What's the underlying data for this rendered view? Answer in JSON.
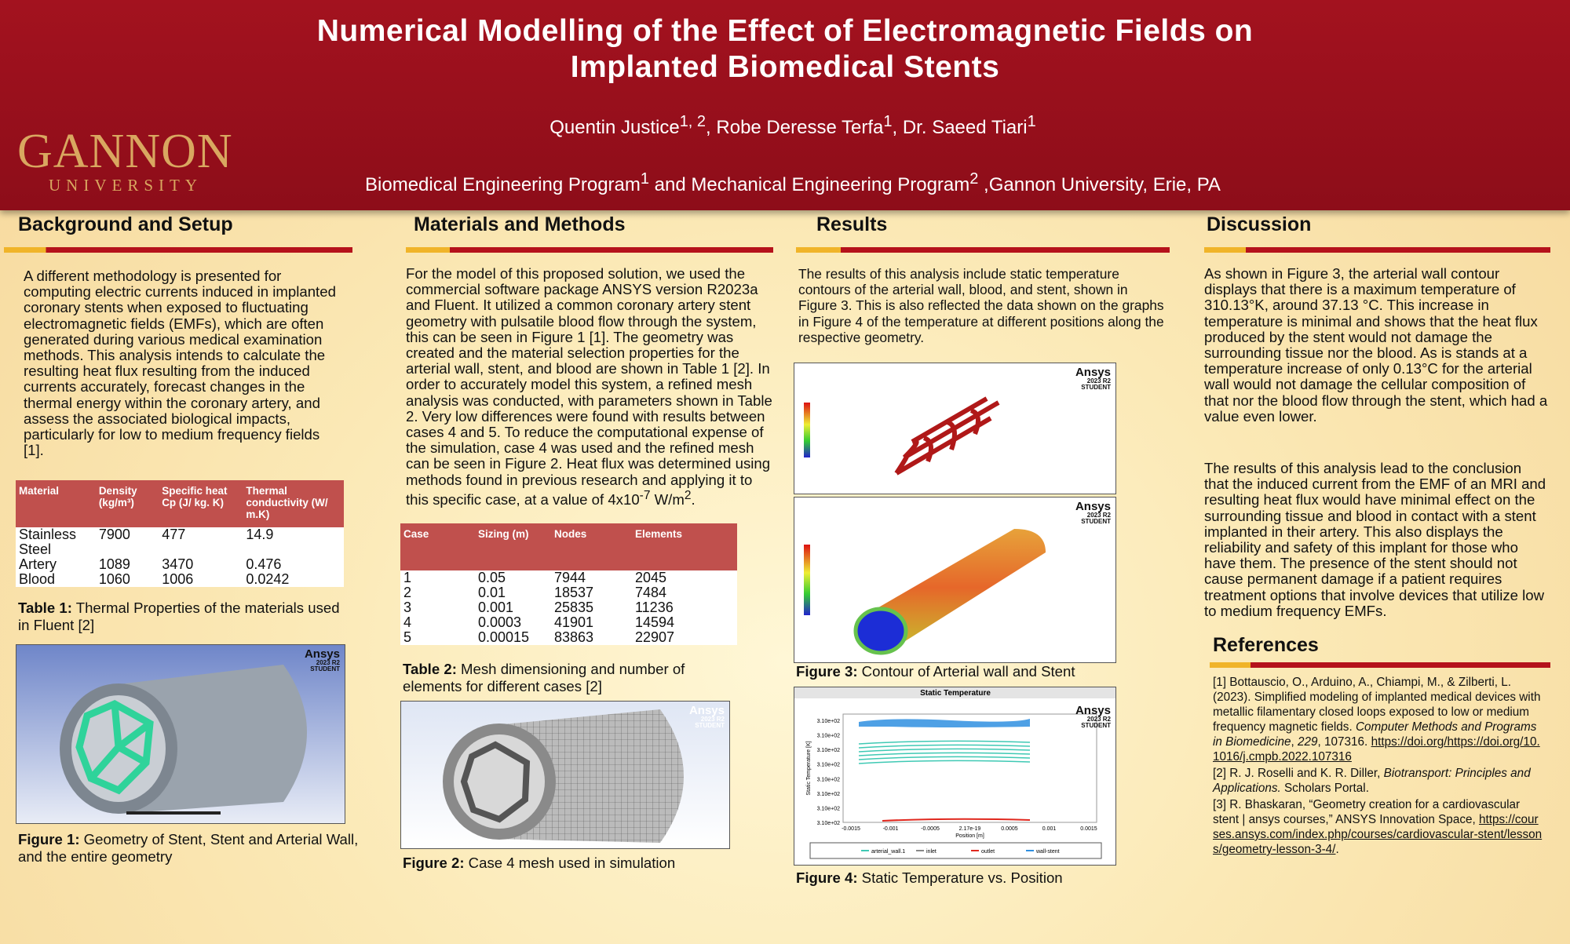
{
  "header": {
    "title_lines": [
      "Numerical Modelling of the Effect of Electromagnetic Fields on",
      "Implanted Biomedical Stents"
    ],
    "authors": [
      {
        "text": "Quentin Justice",
        "sup": "1, 2"
      },
      {
        "text": ", Robe Deresse Terfa",
        "sup": "1"
      },
      {
        "text": ", Dr. Saeed Tiari",
        "sup": "1"
      }
    ],
    "affiliation": [
      {
        "text": "Biomedical Engineering Program",
        "sup": "1"
      },
      {
        "text": " and Mechanical Engineering Program",
        "sup": "2"
      },
      {
        "text": " ,Gannon University, Erie, PA"
      }
    ],
    "logo": {
      "name": "GANNON",
      "sub": "UNIVERSITY"
    }
  },
  "ansys_badge": {
    "brand": "Ansys",
    "version": "2023 R2",
    "edition": "STUDENT"
  },
  "background": {
    "heading": "Background and Setup",
    "text": "A different methodology is presented for computing electric currents induced in implanted coronary stents when exposed to fluctuating electromagnetic fields (EMFs), which are often generated during various medical examination methods. This analysis intends to calculate the resulting heat flux resulting from the induced currents accurately, forecast changes in the thermal energy within the coronary artery, and assess the associated biological impacts, particularly for low to medium frequency fields [1].",
    "table": {
      "headers": [
        "Material",
        "Density (kg/m³)",
        "Specific heat Cp (J/ kg. K)",
        "Thermal conductivity (W/ m.K)"
      ],
      "rows": [
        [
          "Stainless Steel",
          7900,
          477,
          14.9
        ],
        [
          "Artery",
          1089,
          3470,
          0.476
        ],
        [
          "Blood",
          1060,
          1006,
          0.0242
        ]
      ]
    },
    "table_caption": {
      "label": "Table 1:",
      "text": " Thermal Properties of the materials used in Fluent [2]"
    },
    "figure_caption": {
      "label": "Figure 1:",
      "text": " Geometry of Stent, Stent and Arterial Wall, and the entire geometry"
    }
  },
  "methods": {
    "heading": "Materials and Methods",
    "text": [
      {
        "text": "For the model of this proposed solution, we used the commercial software package ANSYS version R2023a and Fluent. It utilized a common coronary artery stent geometry with pulsatile blood flow through the system, this can be seen in Figure 1 [1]. The geometry was created and the material selection properties for the arterial wall, stent, and blood are shown in Table 1 [2]. In order to accurately model this system, a refined mesh analysis was conducted, with parameters shown in Table 2. Very low differences were found with results between cases 4 and 5. To reduce the computational expense of the simulation, case 4 was used and the refined mesh can be seen in Figure 2. Heat flux was determined using methods found in previous research and applying it to this specific case, at a value of 4x10",
        "sup": "-7"
      },
      {
        "text": " W/m",
        "sup": "2"
      },
      {
        "text": "."
      }
    ],
    "table": {
      "headers": [
        "Case",
        "Sizing (m)",
        "Nodes",
        "Elements"
      ],
      "rows": [
        [
          1,
          0.05,
          7944,
          2045
        ],
        [
          2,
          0.01,
          18537,
          7484
        ],
        [
          3,
          0.001,
          25835,
          11236
        ],
        [
          4,
          0.0003,
          41901,
          14594
        ],
        [
          5,
          0.00015,
          83863,
          22907
        ]
      ]
    },
    "table_caption": {
      "label": "Table 2:",
      "text": " Mesh dimensioning and number of elements for different cases [2]"
    },
    "figure_caption": {
      "label": "Figure 2:",
      "text": " Case 4 mesh used in simulation"
    }
  },
  "results": {
    "heading": "Results",
    "text": "The results of this analysis include static temperature contours of the arterial wall, blood, and stent, shown in Figure 3. This is also reflected the data shown on the graphs in Figure 4 of the temperature at different positions along the respective geometry.",
    "figure3_caption": {
      "label": "Figure 3:",
      "text": " Contour of Arterial wall and Stent"
    },
    "figure4": {
      "title": "Static Temperature",
      "ylabel": "Static Temperature [K]",
      "xlabel": "Position [m]",
      "ytick_labels": [
        "3.10e+02",
        "3.10e+02",
        "3.10e+02",
        "3.10e+02",
        "3.10e+02",
        "3.10e+02",
        "3.10e+02",
        "3.10e+02"
      ],
      "xtick_labels": [
        "-0.0015",
        "-0.001",
        "-0.0005",
        "2.17e-19",
        "0.0005",
        "0.001",
        "0.0015"
      ],
      "legend": [
        {
          "name": "arterial_wall.1",
          "color": "#3fc9b4"
        },
        {
          "name": "inlet",
          "color": "#888888"
        },
        {
          "name": "outlet",
          "color": "#e0281e"
        },
        {
          "name": "wall-stent",
          "color": "#2f8fe0"
        }
      ]
    },
    "figure4_caption": {
      "label": "Figure 4:",
      "text": " Static Temperature vs. Position"
    }
  },
  "discussion": {
    "heading": "Discussion",
    "paragraphs": [
      "As shown in Figure 3, the arterial wall contour displays that there is a maximum temperature of 310.13°K, around 37.13 °C. This increase in temperature is minimal and shows that the heat flux produced by the stent would not damage the surrounding tissue nor the blood. As is stands at a temperature increase of only 0.13°C for the arterial wall would not damage the cellular composition of that nor the blood flow through the stent, which had a value even lower.",
      "The results of this analysis lead to the conclusion that the induced current from the EMF of an MRI and resulting heat flux would have minimal effect on the surrounding tissue and blood in contact with a stent implanted in their artery. This also displays the reliability and safety of this implant for those who have them. The presence of the stent should not cause permanent damage if a patient requires treatment options that involve devices that utilize low to medium frequency EMFs."
    ]
  },
  "references": {
    "heading": "References",
    "items": [
      [
        {
          "text": "[1]  Bottauscio, O., Arduino, A., Chiampi, M., & Zilberti, L. (2023). Simplified modeling of implanted medical devices with metallic filamentary closed loops exposed to low or medium frequency magnetic fields. "
        },
        {
          "text": "Computer Methods and Programs in Biomedicine",
          "style": "italic"
        },
        {
          "text": ", "
        },
        {
          "text": "229",
          "style": "italic"
        },
        {
          "text": ", 107316. "
        },
        {
          "text": "https://doi.org/https://doi.org/10.1016/j.cmpb.2022.107316",
          "style": "link"
        }
      ],
      [
        {
          "text": "[2]    R. J. Roselli and K. R. Diller, "
        },
        {
          "text": "Biotransport: Principles and Applications.",
          "style": "italic"
        },
        {
          "text": " Scholars Portal."
        }
      ],
      [
        {
          "text": "[3]     R. Bhaskaran, “Geometry creation for a cardiovascular stent | ansys courses,” ANSYS Innovation Space, "
        },
        {
          "text": "https://courses.ansys.com/index.php/courses/cardiovascular-stent/lessons/geometry-lesson-3-4/",
          "style": "link"
        },
        {
          "text": "."
        }
      ]
    ]
  }
}
